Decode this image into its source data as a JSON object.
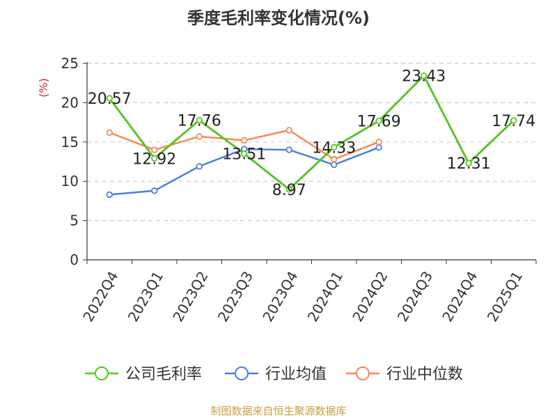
{
  "chart_data": {
    "type": "line",
    "title": "季度毛利率变化情况(%)",
    "ylabel": "(%)",
    "ylim": [
      0,
      25
    ],
    "yticks": [
      0,
      5,
      10,
      15,
      20,
      25
    ],
    "grid": true,
    "legend_position": "bottom",
    "categories": [
      "2022Q4",
      "2023Q1",
      "2023Q2",
      "2023Q3",
      "2023Q4",
      "2024Q1",
      "2024Q2",
      "2024Q3",
      "2024Q4",
      "2025Q1"
    ],
    "series": [
      {
        "name": "公司毛利率",
        "color": "#5bc32a",
        "values": [
          20.57,
          12.92,
          17.76,
          13.51,
          8.97,
          14.33,
          17.69,
          23.43,
          12.31,
          17.74
        ],
        "labels": [
          "20.57",
          "12.92",
          "17.76",
          "13.51",
          "8.97",
          "14.33",
          "17.69",
          "23.43",
          "12.31",
          "17.74"
        ]
      },
      {
        "name": "行业均值",
        "color": "#4a7fdc",
        "values": [
          8.3,
          8.8,
          11.9,
          14.1,
          14.0,
          12.1,
          14.3,
          null,
          null,
          null
        ]
      },
      {
        "name": "行业中位数",
        "color": "#f5885a",
        "values": [
          16.2,
          14.0,
          15.7,
          15.2,
          16.5,
          12.8,
          15.0,
          null,
          null,
          null
        ]
      }
    ]
  },
  "colors": {
    "axis": "#333333",
    "grid": "#cccccc",
    "unit_label": "#e02020",
    "source_text": "#c8a040"
  },
  "source": "制图数据来自恒生聚源数据库"
}
